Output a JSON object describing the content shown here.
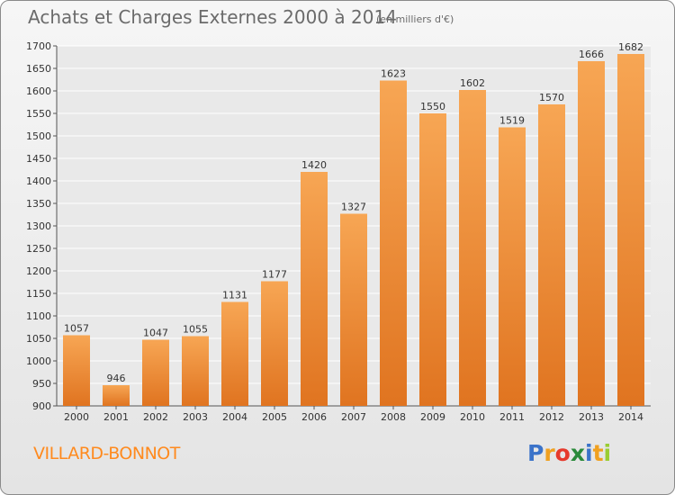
{
  "title": "Achats et Charges Externes 2000 à 2014",
  "unit": "(en milliers d'€)",
  "commune": "VILLARD-BONNOT",
  "logo": {
    "text": "Proxiti",
    "letters": [
      {
        "c": "P",
        "color": "#3b73c9"
      },
      {
        "c": "r",
        "color": "#f0a020"
      },
      {
        "c": "o",
        "color": "#e63a2c"
      },
      {
        "c": "x",
        "color": "#2a8a3a"
      },
      {
        "c": "i",
        "color": "#3b73c9"
      },
      {
        "c": "t",
        "color": "#f0a020"
      },
      {
        "c": "i",
        "color": "#9acd32"
      }
    ]
  },
  "colors": {
    "bar_top": "#f7a654",
    "bar_bottom": "#e07420",
    "grid": "#ffffff",
    "text": "#333333"
  },
  "chart_data": {
    "type": "bar",
    "title": "Achats et Charges Externes 2000 à 2014",
    "unit": "(en milliers d'€)",
    "categories": [
      "2000",
      "2001",
      "2002",
      "2003",
      "2004",
      "2005",
      "2006",
      "2007",
      "2008",
      "2009",
      "2010",
      "2011",
      "2012",
      "2013",
      "2014"
    ],
    "values": [
      1057,
      946,
      1047,
      1055,
      1131,
      1177,
      1420,
      1327,
      1623,
      1550,
      1602,
      1519,
      1570,
      1666,
      1682
    ],
    "ylim": [
      900,
      1700
    ],
    "yticks": [
      900,
      950,
      1000,
      1050,
      1100,
      1150,
      1200,
      1250,
      1300,
      1350,
      1400,
      1450,
      1500,
      1550,
      1600,
      1650,
      1700
    ],
    "grid": true,
    "legend": "none"
  }
}
